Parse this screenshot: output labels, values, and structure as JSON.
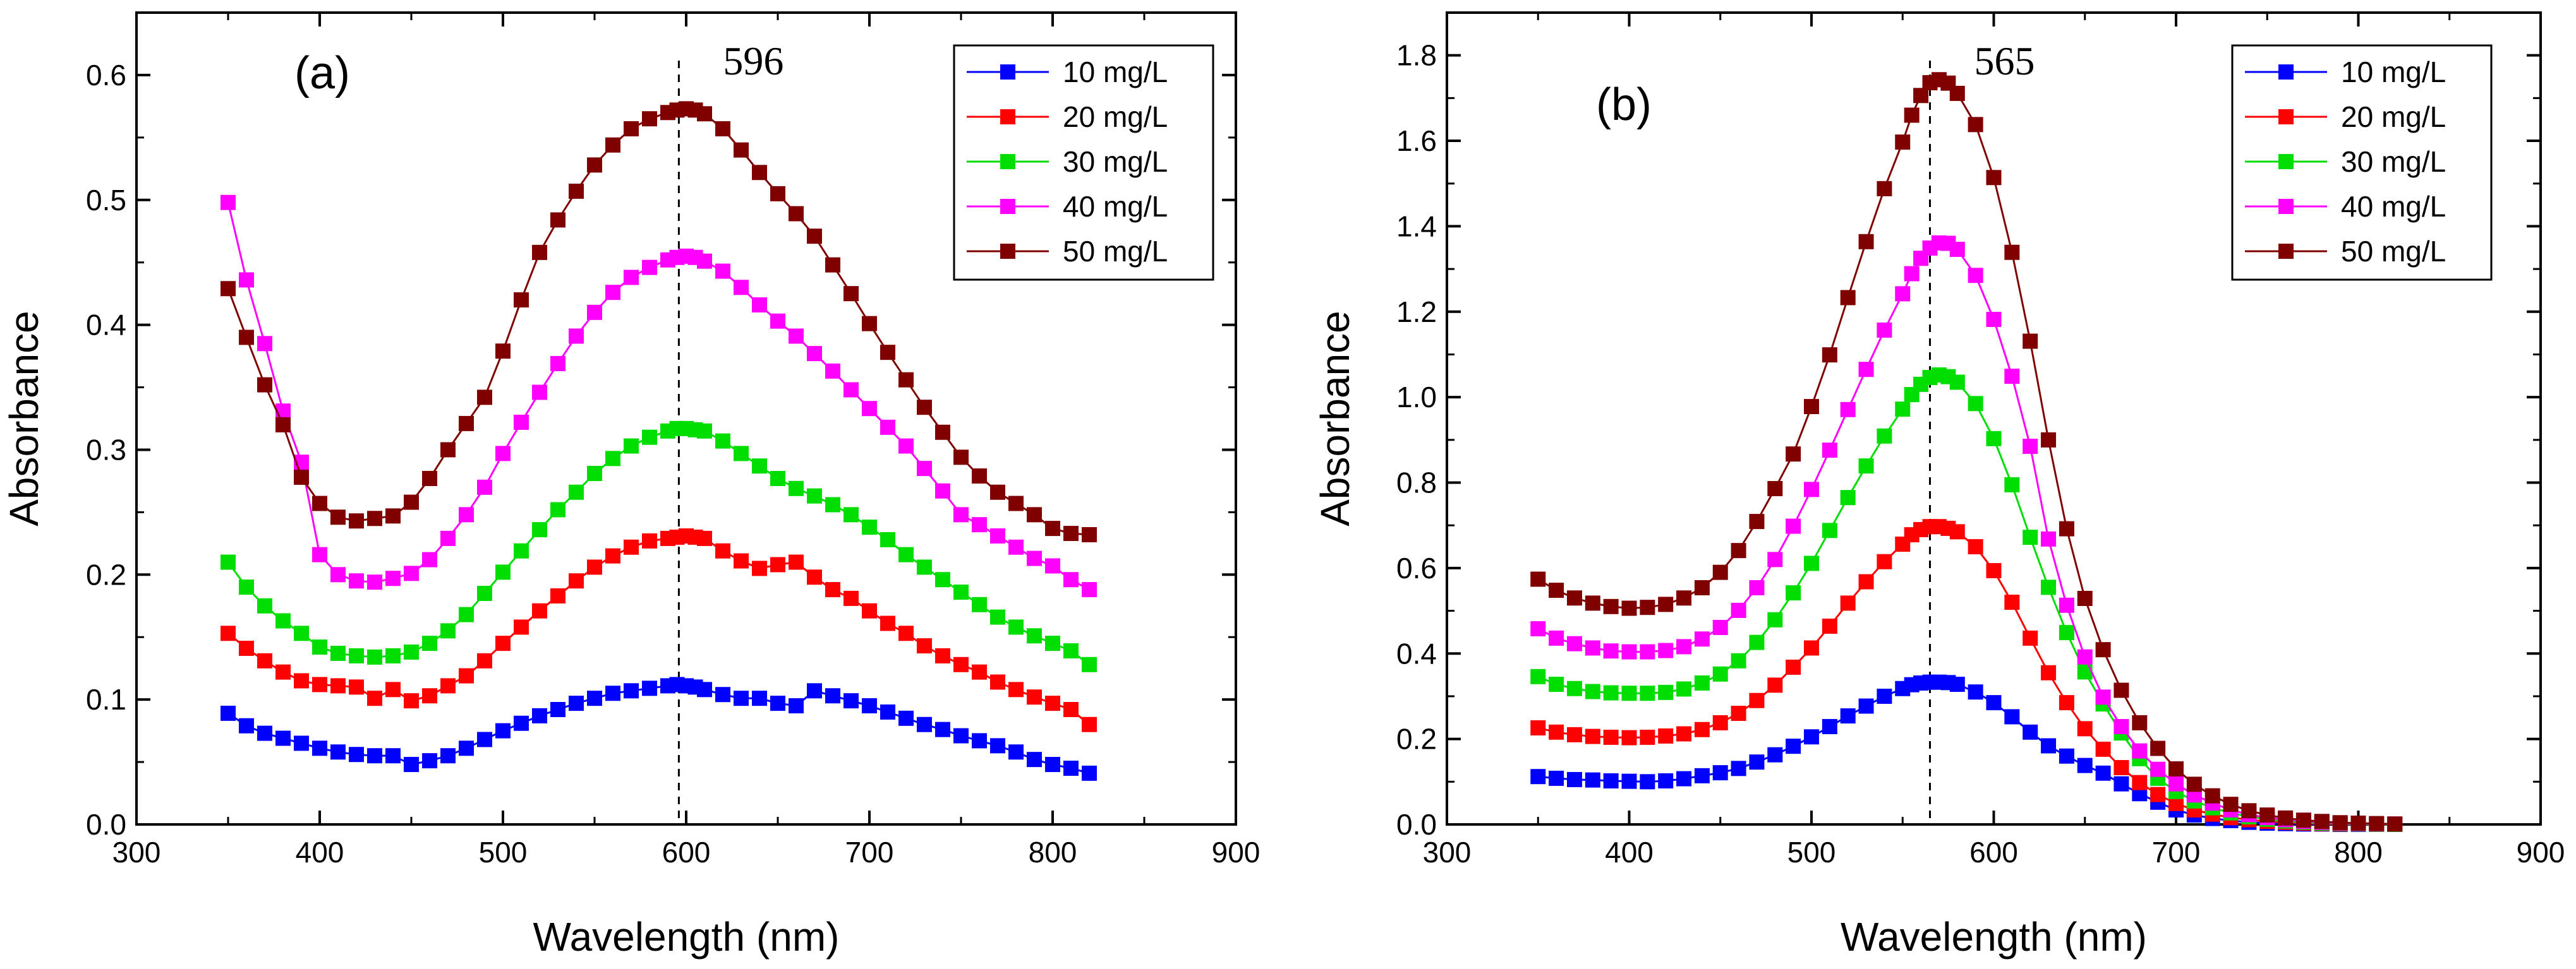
{
  "chart_data": [
    {
      "type": "line",
      "panel_label": "(a)",
      "xlabel": "Wavelength (nm)",
      "ylabel": "Absorbance",
      "xlim": [
        300,
        900
      ],
      "ylim": [
        0,
        0.65
      ],
      "x_ticks": [
        "300",
        "400",
        "500",
        "600",
        "700",
        "800",
        "900"
      ],
      "y_ticks": [
        "0.0",
        "0.1",
        "0.2",
        "0.3",
        "0.4",
        "0.5",
        "0.6"
      ],
      "peak": {
        "label": "596",
        "x": 596
      },
      "legend_position": "top-right",
      "x": [
        350,
        360,
        370,
        380,
        390,
        400,
        410,
        420,
        430,
        440,
        450,
        460,
        470,
        480,
        490,
        500,
        510,
        520,
        530,
        540,
        550,
        560,
        570,
        580,
        590,
        595,
        600,
        605,
        610,
        620,
        630,
        640,
        650,
        660,
        670,
        680,
        690,
        700,
        710,
        720,
        730,
        740,
        750,
        760,
        770,
        780,
        790,
        800,
        810,
        820
      ],
      "series": [
        {
          "name": "10 mg/L",
          "color": "#0000ff",
          "values": [
            0.089,
            0.079,
            0.073,
            0.069,
            0.065,
            0.061,
            0.058,
            0.056,
            0.055,
            0.055,
            0.048,
            0.051,
            0.055,
            0.061,
            0.068,
            0.075,
            0.081,
            0.087,
            0.092,
            0.097,
            0.101,
            0.105,
            0.107,
            0.109,
            0.111,
            0.112,
            0.111,
            0.11,
            0.108,
            0.104,
            0.101,
            0.101,
            0.097,
            0.095,
            0.107,
            0.103,
            0.099,
            0.095,
            0.09,
            0.085,
            0.08,
            0.076,
            0.071,
            0.067,
            0.063,
            0.058,
            0.052,
            0.048,
            0.045,
            0.041
          ]
        },
        {
          "name": "20 mg/L",
          "color": "#ff0000",
          "values": [
            0.153,
            0.141,
            0.131,
            0.122,
            0.115,
            0.112,
            0.111,
            0.11,
            0.101,
            0.108,
            0.099,
            0.103,
            0.111,
            0.119,
            0.131,
            0.145,
            0.158,
            0.171,
            0.183,
            0.195,
            0.206,
            0.215,
            0.222,
            0.227,
            0.229,
            0.23,
            0.231,
            0.23,
            0.229,
            0.219,
            0.211,
            0.205,
            0.208,
            0.21,
            0.198,
            0.188,
            0.181,
            0.171,
            0.161,
            0.153,
            0.143,
            0.135,
            0.128,
            0.122,
            0.114,
            0.108,
            0.102,
            0.097,
            0.092,
            0.08
          ]
        },
        {
          "name": "30 mg/L",
          "color": "#00dd00",
          "values": [
            0.21,
            0.19,
            0.175,
            0.163,
            0.153,
            0.142,
            0.137,
            0.135,
            0.134,
            0.135,
            0.138,
            0.145,
            0.155,
            0.168,
            0.185,
            0.202,
            0.219,
            0.236,
            0.252,
            0.266,
            0.281,
            0.293,
            0.303,
            0.31,
            0.315,
            0.317,
            0.317,
            0.316,
            0.315,
            0.307,
            0.297,
            0.287,
            0.277,
            0.269,
            0.263,
            0.256,
            0.248,
            0.238,
            0.228,
            0.216,
            0.206,
            0.196,
            0.186,
            0.176,
            0.166,
            0.158,
            0.151,
            0.145,
            0.139,
            0.128
          ]
        },
        {
          "name": "40 mg/L",
          "color": "#ff00ff",
          "values": [
            0.498,
            0.436,
            0.385,
            0.331,
            0.29,
            0.216,
            0.2,
            0.195,
            0.194,
            0.197,
            0.201,
            0.212,
            0.229,
            0.248,
            0.27,
            0.297,
            0.322,
            0.346,
            0.369,
            0.391,
            0.41,
            0.426,
            0.438,
            0.446,
            0.452,
            0.454,
            0.455,
            0.454,
            0.451,
            0.443,
            0.43,
            0.416,
            0.403,
            0.391,
            0.377,
            0.363,
            0.348,
            0.333,
            0.318,
            0.303,
            0.285,
            0.267,
            0.248,
            0.24,
            0.231,
            0.222,
            0.213,
            0.207,
            0.196,
            0.188
          ]
        },
        {
          "name": "50 mg/L",
          "color": "#800000",
          "values": [
            0.429,
            0.39,
            0.352,
            0.32,
            0.278,
            0.257,
            0.246,
            0.243,
            0.245,
            0.247,
            0.258,
            0.277,
            0.3,
            0.321,
            0.342,
            0.379,
            0.42,
            0.458,
            0.484,
            0.507,
            0.528,
            0.544,
            0.557,
            0.565,
            0.57,
            0.572,
            0.573,
            0.572,
            0.569,
            0.557,
            0.54,
            0.522,
            0.505,
            0.489,
            0.471,
            0.448,
            0.425,
            0.401,
            0.378,
            0.356,
            0.334,
            0.314,
            0.294,
            0.279,
            0.266,
            0.257,
            0.248,
            0.237,
            0.233,
            0.232
          ]
        }
      ]
    },
    {
      "type": "line",
      "panel_label": "(b)",
      "xlabel": "Wavelength (nm)",
      "ylabel": "Absorbance",
      "xlim": [
        300,
        900
      ],
      "ylim": [
        0,
        1.9
      ],
      "x_ticks": [
        "300",
        "400",
        "500",
        "600",
        "700",
        "800",
        "900"
      ],
      "y_ticks": [
        "0.0",
        "0.2",
        "0.4",
        "0.6",
        "0.8",
        "1.0",
        "1.2",
        "1.4",
        "1.6",
        "1.8"
      ],
      "peak": {
        "label": "565",
        "x": 565
      },
      "legend_position": "top-right",
      "x": [
        350,
        360,
        370,
        380,
        390,
        400,
        410,
        420,
        430,
        440,
        450,
        460,
        470,
        480,
        490,
        500,
        510,
        520,
        530,
        540,
        550,
        555,
        560,
        565,
        570,
        575,
        580,
        590,
        600,
        610,
        620,
        630,
        640,
        650,
        660,
        670,
        680,
        690,
        700,
        710,
        720,
        730,
        740,
        750,
        760,
        770,
        780,
        790,
        800,
        810,
        820
      ],
      "series": [
        {
          "name": "10 mg/L",
          "color": "#0000ff",
          "values": [
            0.112,
            0.108,
            0.105,
            0.104,
            0.102,
            0.101,
            0.1,
            0.102,
            0.107,
            0.114,
            0.121,
            0.131,
            0.146,
            0.163,
            0.183,
            0.205,
            0.229,
            0.254,
            0.277,
            0.3,
            0.318,
            0.327,
            0.331,
            0.333,
            0.333,
            0.332,
            0.328,
            0.31,
            0.285,
            0.252,
            0.216,
            0.184,
            0.16,
            0.138,
            0.12,
            0.095,
            0.072,
            0.052,
            0.034,
            0.022,
            0.014,
            0.009,
            0.005,
            0.003,
            0.002,
            0.001,
            0.001,
            0.0,
            0.0,
            0.0,
            0.0
          ]
        },
        {
          "name": "20 mg/L",
          "color": "#ff0000",
          "values": [
            0.226,
            0.216,
            0.21,
            0.206,
            0.204,
            0.203,
            0.204,
            0.207,
            0.212,
            0.222,
            0.238,
            0.26,
            0.29,
            0.326,
            0.368,
            0.413,
            0.464,
            0.518,
            0.568,
            0.615,
            0.656,
            0.678,
            0.69,
            0.697,
            0.697,
            0.693,
            0.685,
            0.65,
            0.594,
            0.52,
            0.436,
            0.355,
            0.285,
            0.224,
            0.176,
            0.133,
            0.098,
            0.07,
            0.049,
            0.034,
            0.024,
            0.016,
            0.011,
            0.007,
            0.005,
            0.003,
            0.002,
            0.001,
            0.001,
            0.0,
            0.0
          ]
        },
        {
          "name": "30 mg/L",
          "color": "#00dd00",
          "values": [
            0.346,
            0.328,
            0.318,
            0.311,
            0.308,
            0.307,
            0.307,
            0.309,
            0.317,
            0.331,
            0.352,
            0.383,
            0.426,
            0.479,
            0.542,
            0.611,
            0.688,
            0.765,
            0.839,
            0.909,
            0.972,
            1.006,
            1.03,
            1.046,
            1.052,
            1.048,
            1.035,
            0.985,
            0.903,
            0.795,
            0.672,
            0.555,
            0.449,
            0.357,
            0.282,
            0.214,
            0.154,
            0.108,
            0.077,
            0.055,
            0.039,
            0.027,
            0.018,
            0.012,
            0.008,
            0.005,
            0.003,
            0.002,
            0.001,
            0.0,
            0.0
          ]
        },
        {
          "name": "40 mg/L",
          "color": "#ff00ff",
          "values": [
            0.458,
            0.436,
            0.423,
            0.413,
            0.406,
            0.404,
            0.404,
            0.407,
            0.416,
            0.434,
            0.461,
            0.501,
            0.554,
            0.62,
            0.698,
            0.784,
            0.876,
            0.971,
            1.065,
            1.157,
            1.242,
            1.289,
            1.325,
            1.349,
            1.361,
            1.36,
            1.346,
            1.285,
            1.182,
            1.049,
            0.885,
            0.668,
            0.513,
            0.392,
            0.298,
            0.229,
            0.172,
            0.129,
            0.095,
            0.069,
            0.05,
            0.034,
            0.023,
            0.016,
            0.011,
            0.007,
            0.005,
            0.003,
            0.002,
            0.001,
            0.001
          ]
        },
        {
          "name": "50 mg/L",
          "color": "#800000",
          "values": [
            0.574,
            0.548,
            0.53,
            0.518,
            0.51,
            0.506,
            0.508,
            0.515,
            0.53,
            0.554,
            0.59,
            0.641,
            0.709,
            0.786,
            0.867,
            0.978,
            1.099,
            1.233,
            1.364,
            1.488,
            1.597,
            1.66,
            1.706,
            1.736,
            1.743,
            1.735,
            1.711,
            1.638,
            1.514,
            1.339,
            1.131,
            0.9,
            0.692,
            0.529,
            0.409,
            0.314,
            0.238,
            0.178,
            0.13,
            0.094,
            0.067,
            0.047,
            0.032,
            0.022,
            0.015,
            0.01,
            0.007,
            0.004,
            0.003,
            0.002,
            0.001
          ]
        }
      ]
    }
  ]
}
